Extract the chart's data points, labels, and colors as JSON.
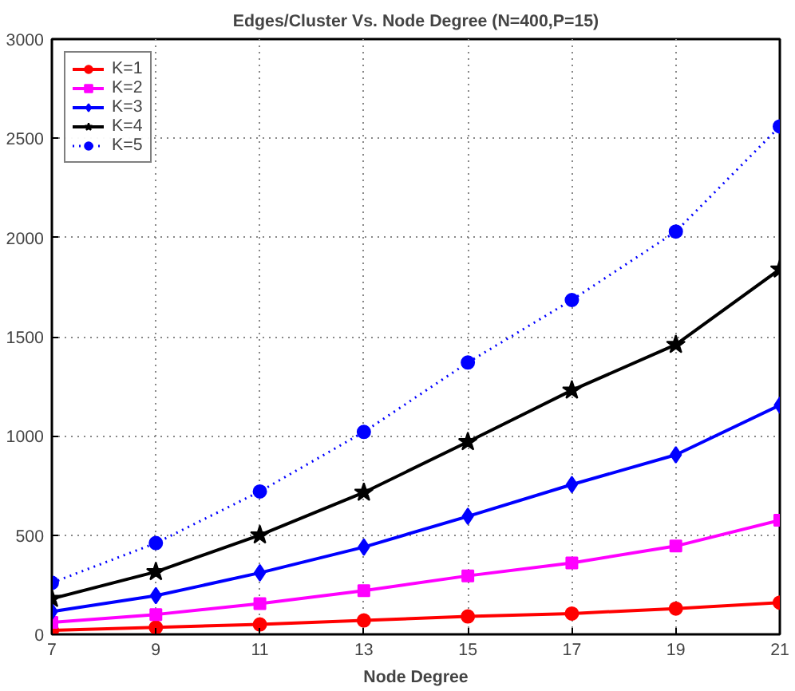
{
  "chart_data": {
    "type": "line",
    "title": "Edges/Cluster Vs. Node Degree (N=400,P=15)",
    "xlabel": "Node Degree",
    "x": [
      7,
      9,
      11,
      13,
      15,
      17,
      19,
      21
    ],
    "series": [
      {
        "name": "K=1",
        "color": "#ff0000",
        "marker": "circle",
        "line_style": "solid",
        "values": [
          20,
          35,
          50,
          70,
          90,
          105,
          130,
          160
        ]
      },
      {
        "name": "K=2",
        "color": "#ff00ff",
        "marker": "square",
        "line_style": "solid",
        "values": [
          60,
          100,
          155,
          220,
          295,
          360,
          445,
          575
        ]
      },
      {
        "name": "K=3",
        "color": "#0000ff",
        "marker": "diamond",
        "line_style": "solid",
        "values": [
          115,
          195,
          310,
          440,
          595,
          755,
          905,
          1155
        ]
      },
      {
        "name": "K=4",
        "color": "#000000",
        "marker": "star",
        "line_style": "solid",
        "values": [
          180,
          315,
          500,
          715,
          970,
          1230,
          1460,
          1840
        ]
      },
      {
        "name": "K=5",
        "color": "#0000ff",
        "marker": "circle",
        "line_style": "dotted",
        "values": [
          260,
          460,
          720,
          1020,
          1370,
          1685,
          2030,
          2560
        ]
      }
    ],
    "xlim": [
      7,
      21
    ],
    "xticks": [
      7,
      9,
      11,
      13,
      15,
      17,
      19,
      21
    ],
    "ylim": [
      0,
      3000
    ],
    "yticks": [
      0,
      500,
      1000,
      1500,
      2000,
      2500,
      3000
    ],
    "grid": true,
    "legend": "top left"
  }
}
